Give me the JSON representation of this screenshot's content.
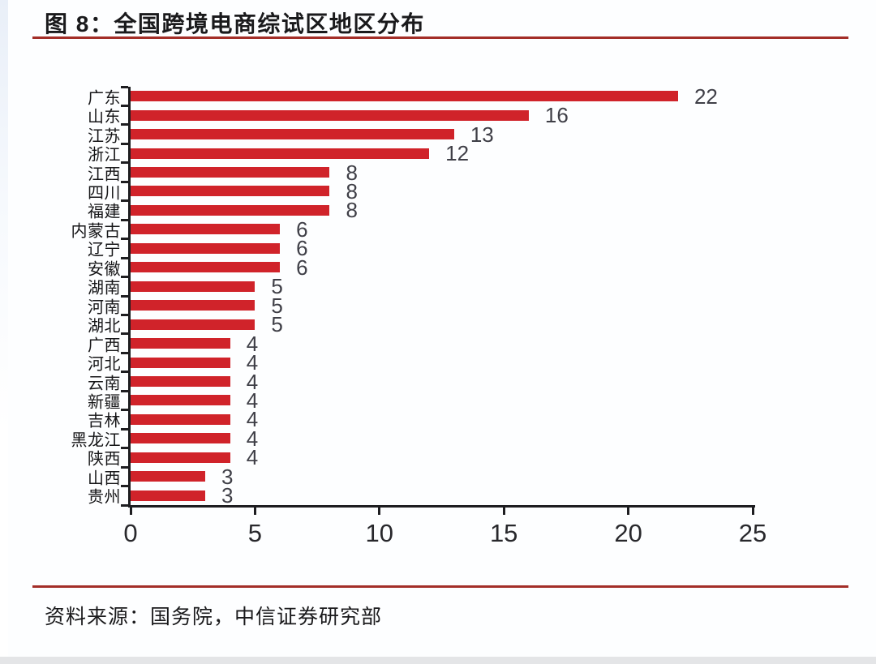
{
  "header": {
    "title": "图 8：全国跨境电商综试区地区分布"
  },
  "footer": {
    "source": "资料来源：国务院，中信证券研究部"
  },
  "colors": {
    "bar": "#d0232a",
    "rule": "#a32e28",
    "axis": "#1d1d20",
    "tick_label": "#28282c",
    "value_label": "#3f3f47",
    "category_label": "#161618"
  },
  "chart_data": {
    "type": "bar",
    "orientation": "horizontal",
    "title": "全国跨境电商综试区地区分布",
    "categories": [
      "广东",
      "山东",
      "江苏",
      "浙江",
      "江西",
      "四川",
      "福建",
      "内蒙古",
      "辽宁",
      "安徽",
      "湖南",
      "河南",
      "湖北",
      "广西",
      "河北",
      "云南",
      "新疆",
      "吉林",
      "黑龙江",
      "陕西",
      "山西",
      "贵州"
    ],
    "values": [
      22,
      16,
      13,
      12,
      8,
      8,
      8,
      6,
      6,
      6,
      5,
      5,
      5,
      4,
      4,
      4,
      4,
      4,
      4,
      4,
      3,
      3
    ],
    "xlabel": "",
    "ylabel": "",
    "xlim": [
      0,
      25
    ],
    "x_ticks": [
      0,
      5,
      10,
      15,
      20,
      25
    ],
    "bar_color": "#d0232a",
    "data_labels": true,
    "grid": false,
    "legend": false
  }
}
